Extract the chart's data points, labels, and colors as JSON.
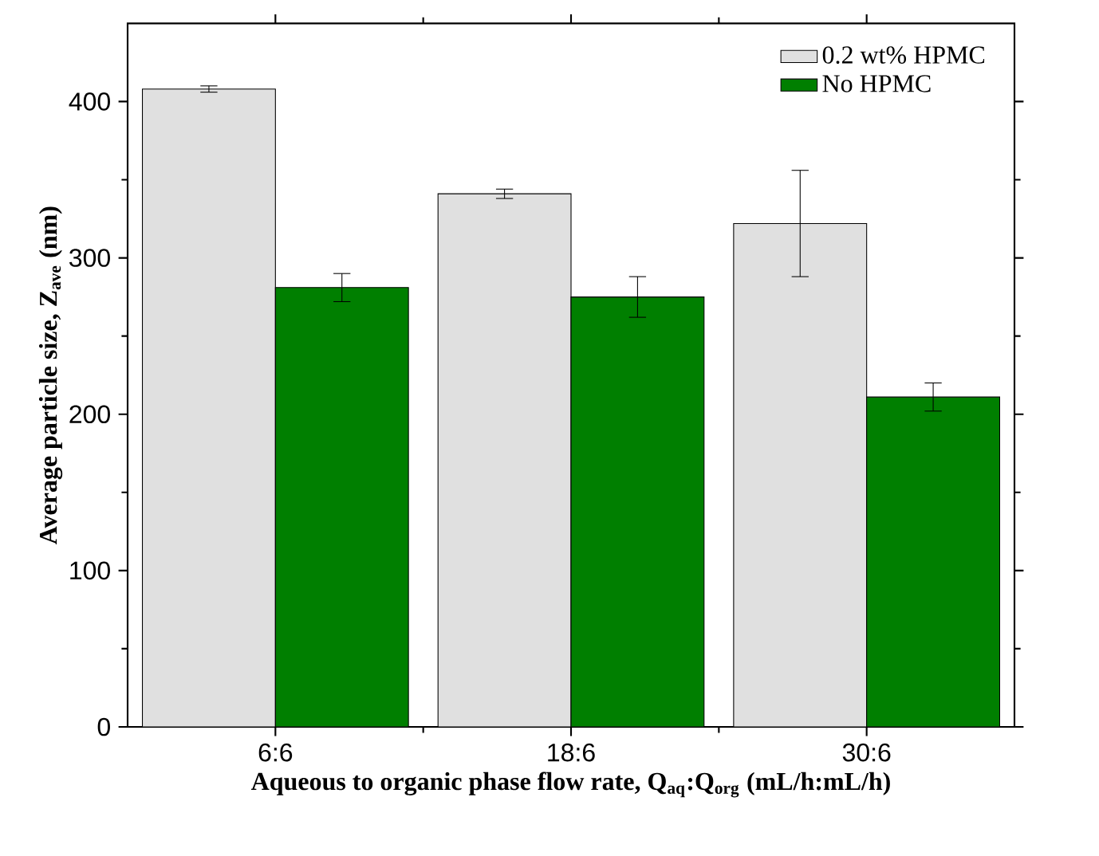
{
  "chart_data": {
    "type": "bar",
    "xlabel": "Aqueous to organic phase flow rate, Q$_{aq}$:Q$_{org}$ (mL/h:mL/h)",
    "ylabel": "Average particle size, Z$_{ave}$ (nm)",
    "categories": [
      "6:6",
      "18:6",
      "30:6"
    ],
    "series": [
      {
        "name": "0.2 wt% HPMC",
        "color": "#e0e0e0",
        "values": [
          408,
          341,
          322
        ],
        "errors": [
          2,
          3,
          34
        ]
      },
      {
        "name": "No HPMC",
        "color": "#007f00",
        "values": [
          281,
          275,
          211
        ],
        "errors": [
          9,
          13,
          9
        ]
      }
    ],
    "ylim": [
      0,
      450
    ],
    "yticks": [
      0,
      100,
      200,
      300,
      400
    ],
    "legend": "top right"
  }
}
